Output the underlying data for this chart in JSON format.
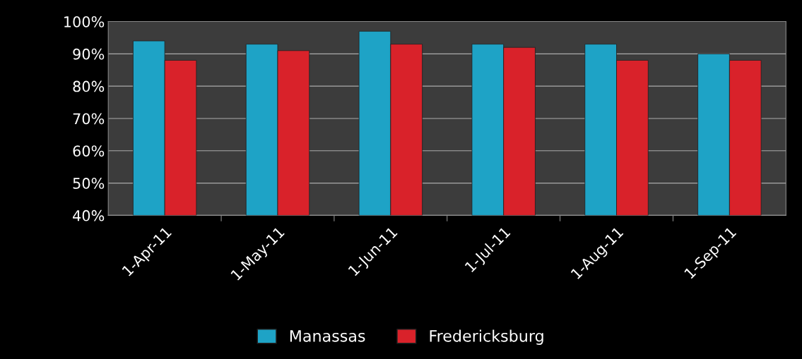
{
  "chart_data": {
    "type": "bar",
    "categories": [
      "1-Apr-11",
      "1-May-11",
      "1-Jun-11",
      "1-Jul-11",
      "1-Aug-11",
      "1-Sep-11"
    ],
    "series": [
      {
        "name": "Manassas",
        "color": "#1ea3c6",
        "values": [
          94,
          93,
          97,
          93,
          93,
          90
        ]
      },
      {
        "name": "Fredericksburg",
        "color": "#d9222a",
        "values": [
          88,
          91,
          93,
          92,
          88,
          88
        ]
      }
    ],
    "ylim": [
      40,
      100
    ],
    "yticks": [
      {
        "value": 40,
        "label": "40%"
      },
      {
        "value": 50,
        "label": "50%"
      },
      {
        "value": 60,
        "label": "60%"
      },
      {
        "value": 70,
        "label": "70%"
      },
      {
        "value": 80,
        "label": "80%"
      },
      {
        "value": 90,
        "label": "90%"
      },
      {
        "value": 100,
        "label": "100%"
      }
    ],
    "grid": "y",
    "legend": "bottom"
  }
}
